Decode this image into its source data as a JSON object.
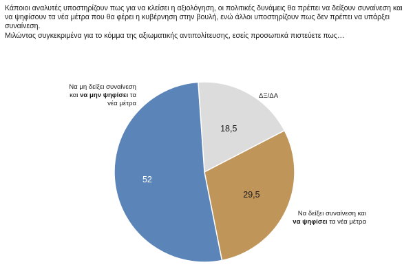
{
  "intro": {
    "line1": "Κάποιοι αναλυτές υποστηρίζουν πως για να κλείσει η αξιολόγηση, οι πολιτικές δυνάμεις θα πρέπει να δείξουν συναίνεση και να ψηφίσουν τα νέα μέτρα που θα φέρει η κυβέρνηση στην βουλή, ενώ άλλοι υποστηρίζουν πως δεν πρέπει να υπάρξει συναίνεση.",
    "line2": "Μιλώντας συγκεκριμένα για το κόμμα της αξιωματικής αντιπολίτευσης, εσείς προσωπικά πιστεύετε πως…"
  },
  "chart_data": {
    "type": "pie",
    "slices": [
      {
        "value": 52,
        "value_label": "52",
        "color": "#5b84b8",
        "label_parts": [
          {
            "text": "Να μη δείξει συναίνεση και ",
            "bold": false
          },
          {
            "text": "να μην ψηφίσει",
            "bold": true
          },
          {
            "text": " τα νέα μέτρα",
            "bold": false
          }
        ]
      },
      {
        "value": 18.5,
        "value_label": "18,5",
        "color": "#dcdcdc",
        "label_parts": [
          {
            "text": "ΔΞ/ΔΑ",
            "bold": false
          }
        ]
      },
      {
        "value": 29.5,
        "value_label": "29,5",
        "color": "#c0955a",
        "label_parts": [
          {
            "text": "Να δείξει συναίνεση και ",
            "bold": false
          },
          {
            "text": "να ψηφίσει",
            "bold": true
          },
          {
            "text": " τα νέα μέτρα",
            "bold": false
          }
        ]
      }
    ]
  }
}
